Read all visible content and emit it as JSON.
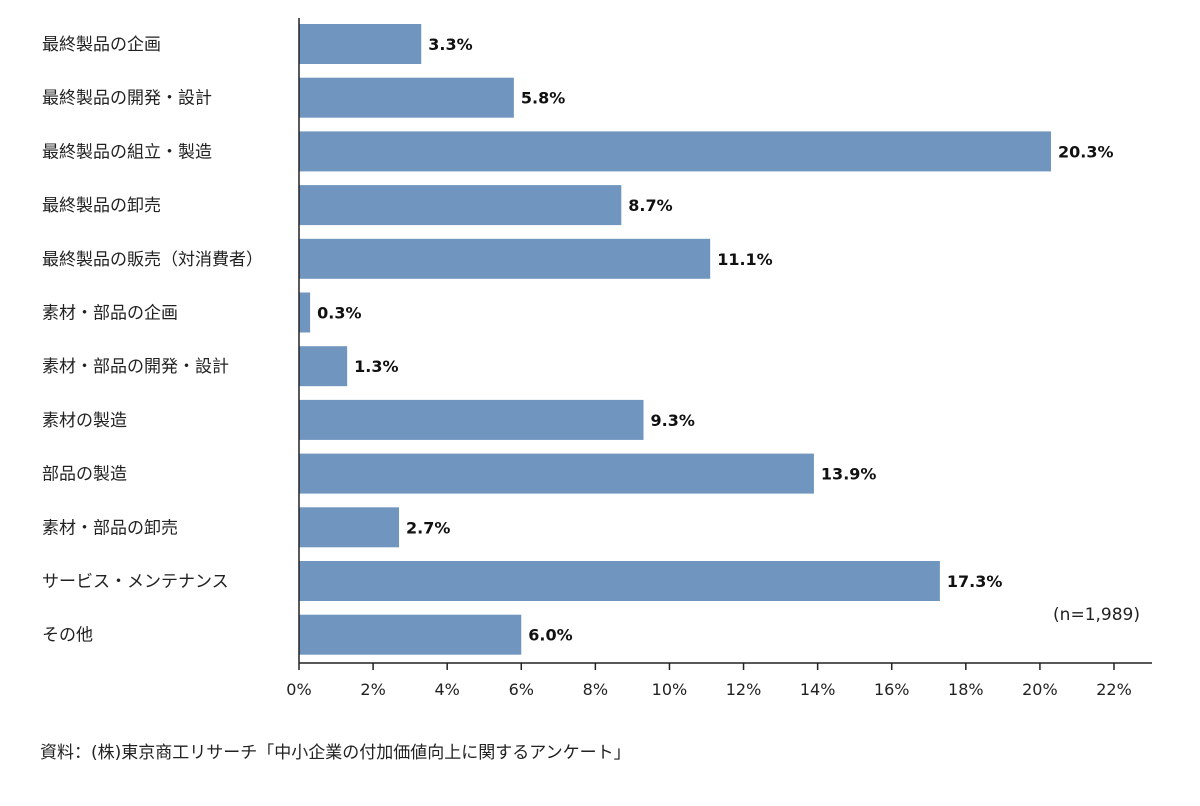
{
  "chart_data": {
    "type": "bar",
    "orientation": "horizontal",
    "categories": [
      "最終製品の企画",
      "最終製品の開発・設計",
      "最終製品の組立・製造",
      "最終製品の卸売",
      "最終製品の販売（対消費者）",
      "素材・部品の企画",
      "素材・部品の開発・設計",
      "素材の製造",
      "部品の製造",
      "素材・部品の卸売",
      "サービス・メンテナンス",
      "その他"
    ],
    "values": [
      3.3,
      5.8,
      20.3,
      8.7,
      11.1,
      0.3,
      1.3,
      9.3,
      13.9,
      2.7,
      17.3,
      6.0
    ],
    "value_labels": [
      "3.3%",
      "5.8%",
      "20.3%",
      "8.7%",
      "11.1%",
      "0.3%",
      "1.3%",
      "9.3%",
      "13.9%",
      "2.7%",
      "17.3%",
      "6.0%"
    ],
    "xlim": [
      0,
      22
    ],
    "ticks": [
      0,
      2,
      4,
      6,
      8,
      10,
      12,
      14,
      16,
      18,
      20,
      22
    ],
    "tick_labels": [
      "0%",
      "2%",
      "4%",
      "6%",
      "8%",
      "10%",
      "12%",
      "14%",
      "16%",
      "18%",
      "20%",
      "22%"
    ],
    "bar_color": "#7096bf",
    "grid": false,
    "annotation": "(n=1,989)"
  },
  "source": "資料：(株)東京商工リサーチ「中小企業の付加価値向上に関するアンケート」"
}
